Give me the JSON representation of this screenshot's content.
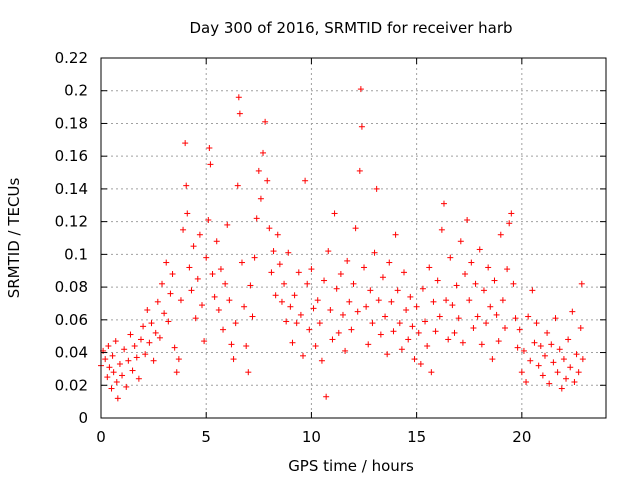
{
  "chart_data": {
    "type": "scatter",
    "title": "Day 300 of 2016, SRMTID for receiver harb",
    "xlabel": "GPS time / hours",
    "ylabel": "SRMTID / TECUs",
    "xlim": [
      0,
      24
    ],
    "ylim": [
      0,
      0.22
    ],
    "x_ticks": [
      0,
      5,
      10,
      15,
      20
    ],
    "x_tick_labels": [
      "0",
      "5",
      "10",
      "15",
      "20"
    ],
    "y_ticks": [
      0,
      0.02,
      0.04,
      0.06,
      0.08,
      0.1,
      0.12,
      0.14,
      0.16,
      0.18,
      0.2,
      0.22
    ],
    "y_tick_labels": [
      "0",
      "0.02",
      "0.04",
      "0.06",
      "0.08",
      "0.1",
      "0.12",
      "0.14",
      "0.16",
      "0.18",
      "0.2",
      "0.22"
    ],
    "grid": true,
    "marker": "+",
    "series": [
      {
        "name": "SRMTID",
        "color": "#ff0000",
        "points": [
          [
            0.0,
            0.032
          ],
          [
            0.1,
            0.041
          ],
          [
            0.2,
            0.036
          ],
          [
            0.3,
            0.025
          ],
          [
            0.35,
            0.044
          ],
          [
            0.4,
            0.031
          ],
          [
            0.5,
            0.018
          ],
          [
            0.55,
            0.038
          ],
          [
            0.6,
            0.028
          ],
          [
            0.7,
            0.047
          ],
          [
            0.75,
            0.022
          ],
          [
            0.8,
            0.012
          ],
          [
            0.9,
            0.033
          ],
          [
            1.0,
            0.026
          ],
          [
            1.1,
            0.042
          ],
          [
            1.2,
            0.019
          ],
          [
            1.3,
            0.035
          ],
          [
            1.4,
            0.051
          ],
          [
            1.5,
            0.029
          ],
          [
            1.6,
            0.044
          ],
          [
            1.7,
            0.037
          ],
          [
            1.8,
            0.024
          ],
          [
            1.9,
            0.048
          ],
          [
            2.0,
            0.056
          ],
          [
            2.1,
            0.039
          ],
          [
            2.2,
            0.066
          ],
          [
            2.3,
            0.046
          ],
          [
            2.4,
            0.058
          ],
          [
            2.5,
            0.035
          ],
          [
            2.6,
            0.052
          ],
          [
            2.7,
            0.071
          ],
          [
            2.8,
            0.049
          ],
          [
            2.9,
            0.082
          ],
          [
            3.0,
            0.064
          ],
          [
            3.1,
            0.095
          ],
          [
            3.2,
            0.059
          ],
          [
            3.3,
            0.076
          ],
          [
            3.4,
            0.088
          ],
          [
            3.5,
            0.043
          ],
          [
            3.6,
            0.028
          ],
          [
            3.7,
            0.036
          ],
          [
            3.8,
            0.072
          ],
          [
            3.9,
            0.115
          ],
          [
            4.0,
            0.168
          ],
          [
            4.05,
            0.142
          ],
          [
            4.1,
            0.125
          ],
          [
            4.2,
            0.092
          ],
          [
            4.3,
            0.078
          ],
          [
            4.4,
            0.105
          ],
          [
            4.5,
            0.061
          ],
          [
            4.6,
            0.085
          ],
          [
            4.7,
            0.112
          ],
          [
            4.8,
            0.069
          ],
          [
            4.9,
            0.047
          ],
          [
            5.0,
            0.098
          ],
          [
            5.1,
            0.121
          ],
          [
            5.15,
            0.165
          ],
          [
            5.2,
            0.155
          ],
          [
            5.3,
            0.088
          ],
          [
            5.4,
            0.074
          ],
          [
            5.5,
            0.108
          ],
          [
            5.6,
            0.066
          ],
          [
            5.7,
            0.091
          ],
          [
            5.8,
            0.054
          ],
          [
            5.9,
            0.082
          ],
          [
            6.0,
            0.118
          ],
          [
            6.1,
            0.072
          ],
          [
            6.2,
            0.045
          ],
          [
            6.3,
            0.036
          ],
          [
            6.4,
            0.058
          ],
          [
            6.5,
            0.142
          ],
          [
            6.55,
            0.196
          ],
          [
            6.6,
            0.186
          ],
          [
            6.7,
            0.095
          ],
          [
            6.8,
            0.068
          ],
          [
            6.9,
            0.044
          ],
          [
            7.0,
            0.028
          ],
          [
            7.1,
            0.081
          ],
          [
            7.2,
            0.062
          ],
          [
            7.3,
            0.098
          ],
          [
            7.4,
            0.122
          ],
          [
            7.5,
            0.151
          ],
          [
            7.6,
            0.134
          ],
          [
            7.7,
            0.162
          ],
          [
            7.8,
            0.181
          ],
          [
            7.9,
            0.145
          ],
          [
            8.0,
            0.116
          ],
          [
            8.1,
            0.089
          ],
          [
            8.2,
            0.102
          ],
          [
            8.3,
            0.075
          ],
          [
            8.4,
            0.112
          ],
          [
            8.5,
            0.094
          ],
          [
            8.6,
            0.071
          ],
          [
            8.7,
            0.082
          ],
          [
            8.8,
            0.059
          ],
          [
            8.9,
            0.101
          ],
          [
            9.0,
            0.068
          ],
          [
            9.1,
            0.046
          ],
          [
            9.2,
            0.075
          ],
          [
            9.3,
            0.058
          ],
          [
            9.4,
            0.089
          ],
          [
            9.5,
            0.063
          ],
          [
            9.6,
            0.038
          ],
          [
            9.7,
            0.145
          ],
          [
            9.8,
            0.082
          ],
          [
            9.9,
            0.054
          ],
          [
            10.0,
            0.091
          ],
          [
            10.1,
            0.067
          ],
          [
            10.2,
            0.044
          ],
          [
            10.3,
            0.072
          ],
          [
            10.4,
            0.058
          ],
          [
            10.5,
            0.035
          ],
          [
            10.6,
            0.084
          ],
          [
            10.7,
            0.013
          ],
          [
            10.8,
            0.102
          ],
          [
            10.9,
            0.066
          ],
          [
            11.0,
            0.048
          ],
          [
            11.1,
            0.125
          ],
          [
            11.2,
            0.079
          ],
          [
            11.3,
            0.052
          ],
          [
            11.4,
            0.088
          ],
          [
            11.5,
            0.063
          ],
          [
            11.6,
            0.041
          ],
          [
            11.7,
            0.096
          ],
          [
            11.8,
            0.071
          ],
          [
            11.9,
            0.054
          ],
          [
            12.0,
            0.082
          ],
          [
            12.1,
            0.116
          ],
          [
            12.2,
            0.065
          ],
          [
            12.3,
            0.151
          ],
          [
            12.35,
            0.201
          ],
          [
            12.4,
            0.178
          ],
          [
            12.5,
            0.092
          ],
          [
            12.6,
            0.068
          ],
          [
            12.7,
            0.045
          ],
          [
            12.8,
            0.078
          ],
          [
            12.9,
            0.058
          ],
          [
            13.0,
            0.101
          ],
          [
            13.1,
            0.14
          ],
          [
            13.2,
            0.072
          ],
          [
            13.3,
            0.051
          ],
          [
            13.4,
            0.086
          ],
          [
            13.5,
            0.062
          ],
          [
            13.6,
            0.039
          ],
          [
            13.7,
            0.095
          ],
          [
            13.8,
            0.071
          ],
          [
            13.9,
            0.053
          ],
          [
            14.0,
            0.112
          ],
          [
            14.1,
            0.078
          ],
          [
            14.2,
            0.058
          ],
          [
            14.3,
            0.042
          ],
          [
            14.4,
            0.089
          ],
          [
            14.5,
            0.066
          ],
          [
            14.6,
            0.048
          ],
          [
            14.7,
            0.074
          ],
          [
            14.8,
            0.056
          ],
          [
            14.9,
            0.036
          ],
          [
            15.0,
            0.068
          ],
          [
            15.1,
            0.052
          ],
          [
            15.2,
            0.033
          ],
          [
            15.3,
            0.079
          ],
          [
            15.4,
            0.059
          ],
          [
            15.5,
            0.044
          ],
          [
            15.6,
            0.092
          ],
          [
            15.7,
            0.028
          ],
          [
            15.8,
            0.071
          ],
          [
            15.9,
            0.053
          ],
          [
            16.0,
            0.084
          ],
          [
            16.1,
            0.062
          ],
          [
            16.2,
            0.115
          ],
          [
            16.3,
            0.131
          ],
          [
            16.4,
            0.072
          ],
          [
            16.5,
            0.048
          ],
          [
            16.6,
            0.098
          ],
          [
            16.7,
            0.069
          ],
          [
            16.8,
            0.052
          ],
          [
            16.9,
            0.081
          ],
          [
            17.0,
            0.061
          ],
          [
            17.1,
            0.108
          ],
          [
            17.2,
            0.046
          ],
          [
            17.3,
            0.088
          ],
          [
            17.4,
            0.121
          ],
          [
            17.5,
            0.072
          ],
          [
            17.6,
            0.095
          ],
          [
            17.7,
            0.055
          ],
          [
            17.8,
            0.082
          ],
          [
            17.9,
            0.062
          ],
          [
            18.0,
            0.103
          ],
          [
            18.1,
            0.045
          ],
          [
            18.2,
            0.078
          ],
          [
            18.3,
            0.058
          ],
          [
            18.4,
            0.092
          ],
          [
            18.5,
            0.068
          ],
          [
            18.6,
            0.036
          ],
          [
            18.7,
            0.084
          ],
          [
            18.8,
            0.063
          ],
          [
            18.9,
            0.047
          ],
          [
            19.0,
            0.112
          ],
          [
            19.1,
            0.072
          ],
          [
            19.2,
            0.055
          ],
          [
            19.3,
            0.091
          ],
          [
            19.4,
            0.119
          ],
          [
            19.5,
            0.125
          ],
          [
            19.6,
            0.082
          ],
          [
            19.7,
            0.061
          ],
          [
            19.8,
            0.043
          ],
          [
            19.9,
            0.054
          ],
          [
            20.0,
            0.028
          ],
          [
            20.1,
            0.041
          ],
          [
            20.2,
            0.022
          ],
          [
            20.3,
            0.062
          ],
          [
            20.4,
            0.035
          ],
          [
            20.5,
            0.078
          ],
          [
            20.6,
            0.046
          ],
          [
            20.7,
            0.058
          ],
          [
            20.8,
            0.032
          ],
          [
            20.9,
            0.044
          ],
          [
            21.0,
            0.026
          ],
          [
            21.1,
            0.038
          ],
          [
            21.2,
            0.052
          ],
          [
            21.3,
            0.021
          ],
          [
            21.4,
            0.045
          ],
          [
            21.5,
            0.034
          ],
          [
            21.6,
            0.061
          ],
          [
            21.7,
            0.028
          ],
          [
            21.8,
            0.042
          ],
          [
            21.9,
            0.018
          ],
          [
            22.0,
            0.036
          ],
          [
            22.1,
            0.024
          ],
          [
            22.2,
            0.048
          ],
          [
            22.3,
            0.031
          ],
          [
            22.4,
            0.065
          ],
          [
            22.5,
            0.022
          ],
          [
            22.6,
            0.039
          ],
          [
            22.7,
            0.028
          ],
          [
            22.8,
            0.055
          ],
          [
            22.85,
            0.082
          ],
          [
            22.9,
            0.036
          ]
        ]
      }
    ]
  }
}
